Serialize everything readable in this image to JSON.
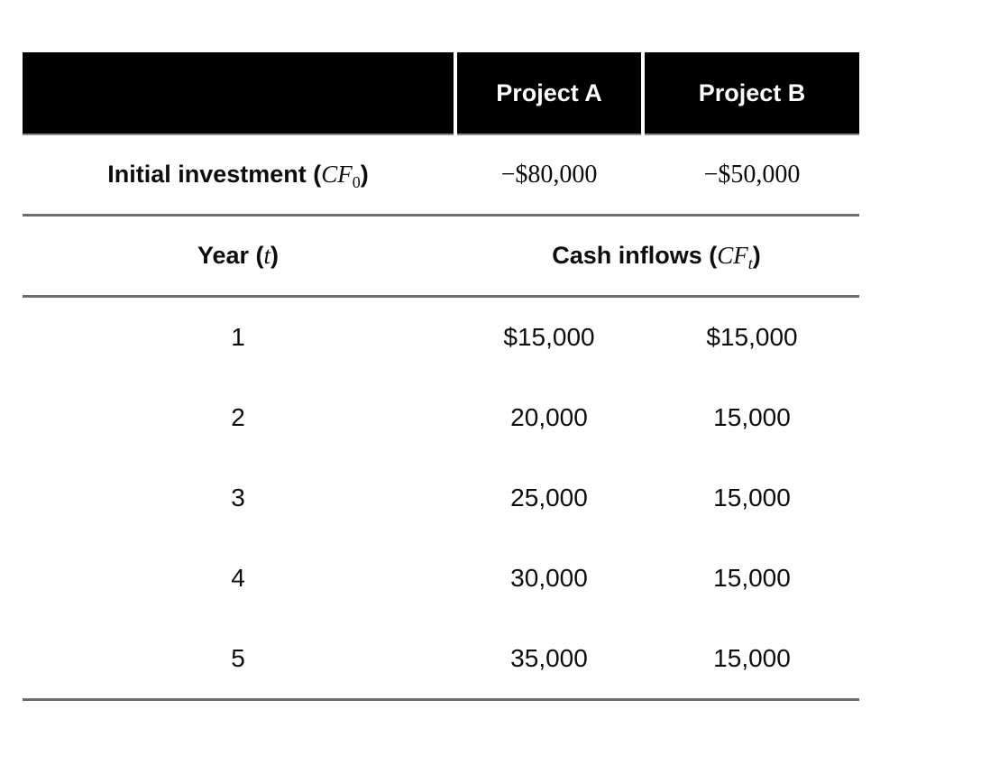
{
  "table": {
    "header": {
      "blank": "",
      "project_a": "Project A",
      "project_b": "Project B"
    },
    "initial_investment": {
      "label_prefix": "Initial investment (",
      "label_math": "CF",
      "label_sub": "0",
      "label_suffix": ")",
      "project_a": "−$80,000",
      "project_b": "−$50,000"
    },
    "section_header": {
      "year_prefix": "Year (",
      "year_math": "t",
      "year_suffix": ")",
      "inflows_prefix": "Cash inflows (",
      "inflows_math": "CF",
      "inflows_sub": "t",
      "inflows_suffix": ")"
    },
    "rows": [
      {
        "year": "1",
        "project_a": "$15,000",
        "project_b": "$15,000"
      },
      {
        "year": "2",
        "project_a": "20,000",
        "project_b": "15,000"
      },
      {
        "year": "3",
        "project_a": "25,000",
        "project_b": "15,000"
      },
      {
        "year": "4",
        "project_a": "30,000",
        "project_b": "15,000"
      },
      {
        "year": "5",
        "project_a": "35,000",
        "project_b": "15,000"
      }
    ],
    "colors": {
      "header_bg": "#000000",
      "header_text": "#ffffff",
      "rule": "#6e6e6e",
      "body_text": "#0d0d0d",
      "background": "#ffffff"
    }
  }
}
